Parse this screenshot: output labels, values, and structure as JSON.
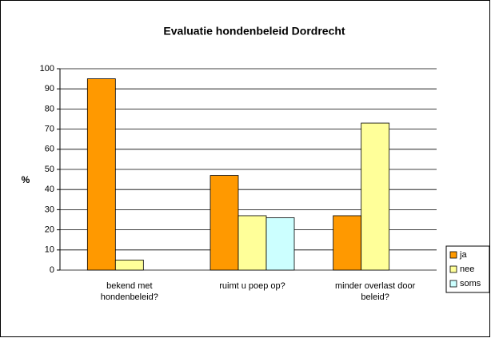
{
  "chart_data": {
    "type": "bar",
    "title": "Evaluatie hondenbeleid Dordrecht",
    "ylabel": "%",
    "categories": [
      [
        "bekend met",
        "hondenbeleid?"
      ],
      [
        "ruimt u poep op?"
      ],
      [
        "minder overlast door",
        "beleid?"
      ]
    ],
    "series": [
      {
        "name": "ja",
        "color": "#ff9900",
        "values": [
          95,
          47,
          27
        ]
      },
      {
        "name": "nee",
        "color": "#ffff99",
        "values": [
          5,
          27,
          73
        ]
      },
      {
        "name": "soms",
        "color": "#ccffff",
        "values": [
          null,
          26,
          null
        ]
      }
    ],
    "ylim": [
      0,
      100
    ],
    "yticks": [
      0,
      10,
      20,
      30,
      40,
      50,
      60,
      70,
      80,
      90,
      100
    ],
    "grid": true,
    "legend": "right"
  }
}
